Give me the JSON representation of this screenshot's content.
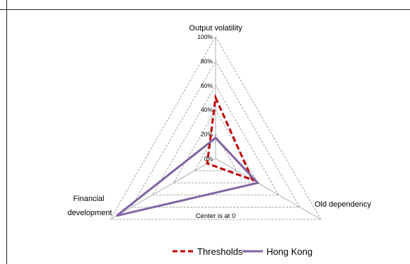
{
  "chart_data": {
    "type": "radar",
    "axes": [
      "Output volatility",
      "Old dependency",
      "Financial development"
    ],
    "ticks": [
      "0%",
      "20%",
      "40%",
      "60%",
      "80%",
      "100%"
    ],
    "rlim": [
      0,
      100
    ],
    "annotation": "Center is at 0",
    "series": [
      {
        "name": "Thresholds",
        "values": [
          50,
          35,
          8
        ],
        "color": "#c00000",
        "style": "dashed"
      },
      {
        "name": "Hong Kong",
        "values": [
          17,
          40,
          94
        ],
        "color": "#8064a2",
        "style": "solid"
      }
    ],
    "legend_position": "bottom",
    "grid": true
  },
  "colors": {
    "grid": "#8c8c8c",
    "spoke": "#a6a6a6",
    "rule": "#222222"
  }
}
